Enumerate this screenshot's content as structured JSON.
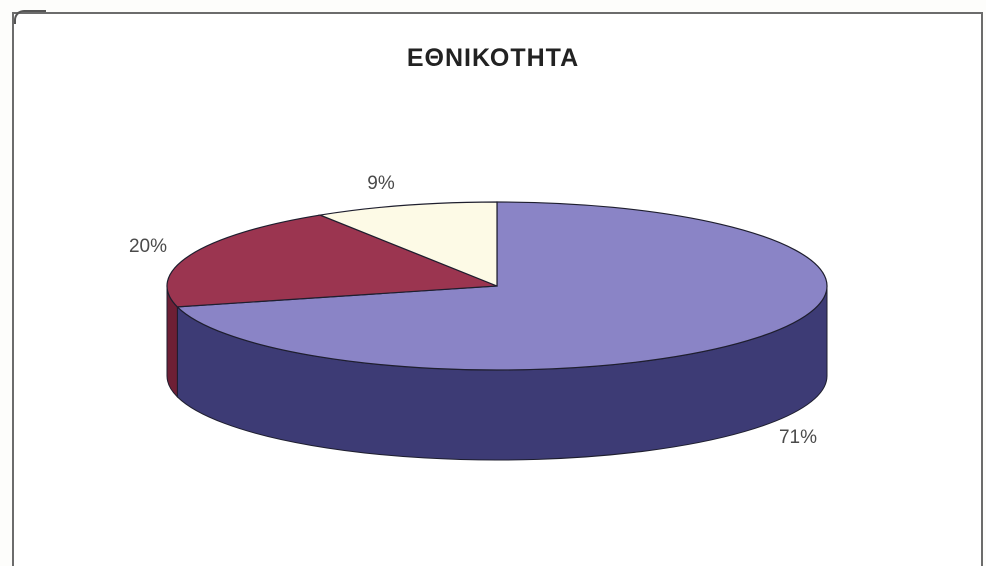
{
  "chart_data": {
    "type": "pie",
    "title": "ΕΘΝΙΚΟΤΗΤΑ",
    "three_d": true,
    "slices": [
      {
        "value": 71,
        "label": "71%",
        "color": "#8a84c6",
        "side_color": "#3d3b75"
      },
      {
        "value": 20,
        "label": "20%",
        "color": "#9b3550",
        "side_color": "#6e1f35"
      },
      {
        "value": 9,
        "label": "9%",
        "color": "#fdfae6",
        "side_color": "#d9d6c0"
      }
    ]
  }
}
